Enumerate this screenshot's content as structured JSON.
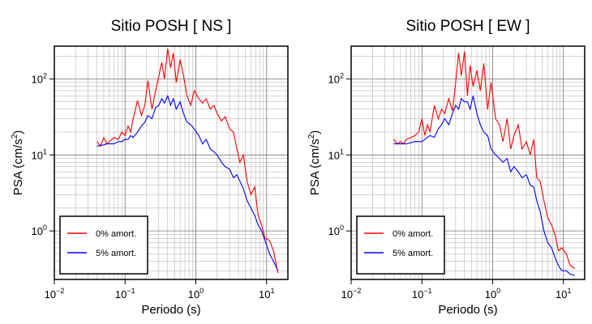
{
  "chart_data": [
    {
      "type": "line",
      "title": "Sitio POSH [ NS ]",
      "xlabel": "Periodo (s)",
      "ylabel": {
        "text": "PSA (cm/s",
        "sup": "2",
        "close": ")"
      },
      "xscale": "log",
      "yscale": "log",
      "grid": true,
      "legend": "lower left",
      "xlim": [
        0.01,
        20
      ],
      "ylim": [
        0.23,
        270
      ],
      "xticks": [
        {
          "value": 0.01,
          "label": "10",
          "exponent": "−2"
        },
        {
          "value": 0.1,
          "label": "10",
          "exponent": "−1"
        },
        {
          "value": 1,
          "label": "10",
          "exponent": "0"
        },
        {
          "value": 10,
          "label": "10",
          "exponent": "1"
        }
      ],
      "yticks": [
        {
          "value": 1,
          "label": "10",
          "exponent": "0"
        },
        {
          "value": 10,
          "label": "10",
          "exponent": "1"
        },
        {
          "value": 100,
          "label": "10",
          "exponent": "2"
        }
      ],
      "x": [
        0.04,
        0.045,
        0.05,
        0.055,
        0.06,
        0.07,
        0.08,
        0.09,
        0.1,
        0.11,
        0.12,
        0.13,
        0.15,
        0.17,
        0.19,
        0.21,
        0.24,
        0.27,
        0.3,
        0.33,
        0.36,
        0.4,
        0.44,
        0.48,
        0.53,
        0.6,
        0.67,
        0.75,
        0.85,
        0.95,
        1.1,
        1.25,
        1.4,
        1.6,
        1.8,
        2,
        2.3,
        2.6,
        3,
        3.4,
        3.8,
        4.2,
        4.7,
        5.3,
        6,
        6.8,
        7.6,
        8.5,
        9.5,
        11,
        12.5,
        14.5
      ],
      "series": [
        {
          "name": "0% amort.",
          "color": "#ff0000",
          "values": [
            15,
            13,
            17,
            14,
            15,
            17,
            16,
            20,
            18,
            24,
            20,
            30,
            52,
            33,
            45,
            95,
            40,
            70,
            110,
            165,
            100,
            250,
            140,
            220,
            90,
            180,
            110,
            60,
            45,
            70,
            55,
            48,
            55,
            40,
            45,
            35,
            28,
            32,
            22,
            20,
            12,
            8,
            10,
            4.5,
            3,
            3.8,
            1.6,
            1.2,
            0.8,
            0.75,
            0.55,
            0.28
          ]
        },
        {
          "name": "5% amort.",
          "color": "#0000ff",
          "values": [
            13,
            13.5,
            13.5,
            14,
            14,
            14,
            15,
            15,
            16,
            16,
            18,
            17,
            20,
            24,
            27,
            33,
            30,
            42,
            45,
            55,
            48,
            60,
            45,
            55,
            40,
            50,
            35,
            27,
            25,
            22,
            18,
            14,
            16,
            12,
            11,
            10,
            8,
            7,
            6.5,
            5,
            5.5,
            4.5,
            3.6,
            2.5,
            2,
            1.6,
            1.2,
            1,
            0.75,
            0.5,
            0.4,
            0.3
          ]
        }
      ]
    },
    {
      "type": "line",
      "title": "Sitio POSH [ EW ]",
      "xlabel": "Periodo (s)",
      "ylabel": {
        "text": "PSA (cm/s",
        "sup": "2",
        "close": ")"
      },
      "xscale": "log",
      "yscale": "log",
      "grid": true,
      "legend": "lower left",
      "xlim": [
        0.01,
        20
      ],
      "ylim": [
        0.23,
        270
      ],
      "xticks": [
        {
          "value": 0.01,
          "label": "10",
          "exponent": "−2"
        },
        {
          "value": 0.1,
          "label": "10",
          "exponent": "−1"
        },
        {
          "value": 1,
          "label": "10",
          "exponent": "0"
        },
        {
          "value": 10,
          "label": "10",
          "exponent": "1"
        }
      ],
      "yticks": [
        {
          "value": 1,
          "label": "10",
          "exponent": "0"
        },
        {
          "value": 10,
          "label": "10",
          "exponent": "1"
        },
        {
          "value": 100,
          "label": "10",
          "exponent": "2"
        }
      ],
      "x": [
        0.04,
        0.045,
        0.05,
        0.055,
        0.06,
        0.07,
        0.08,
        0.09,
        0.1,
        0.11,
        0.12,
        0.13,
        0.15,
        0.17,
        0.19,
        0.21,
        0.24,
        0.27,
        0.3,
        0.33,
        0.36,
        0.4,
        0.44,
        0.48,
        0.53,
        0.6,
        0.67,
        0.75,
        0.85,
        0.95,
        1.1,
        1.25,
        1.4,
        1.6,
        1.8,
        2,
        2.3,
        2.6,
        3,
        3.4,
        3.8,
        4.2,
        4.7,
        5.3,
        6,
        6.8,
        7.6,
        8.5,
        9.5,
        11,
        12.5,
        14.5
      ],
      "series": [
        {
          "name": "0% amort.",
          "color": "#ff0000",
          "values": [
            16,
            14,
            15,
            14,
            16,
            17,
            18,
            20,
            30,
            18,
            25,
            20,
            45,
            30,
            40,
            35,
            55,
            38,
            90,
            220,
            110,
            230,
            60,
            150,
            80,
            130,
            70,
            160,
            40,
            90,
            30,
            25,
            15,
            30,
            12,
            18,
            25,
            12,
            15,
            10,
            16,
            5,
            4.5,
            2.5,
            1.5,
            1.2,
            0.9,
            0.55,
            0.6,
            0.5,
            0.35,
            0.32
          ]
        },
        {
          "name": "5% amort.",
          "color": "#0000ff",
          "values": [
            14,
            14,
            14,
            14,
            14,
            14.5,
            15,
            15,
            15,
            16,
            17,
            18,
            17,
            22,
            25,
            30,
            25,
            35,
            45,
            40,
            55,
            50,
            50,
            40,
            60,
            35,
            25,
            20,
            18,
            12,
            10,
            9,
            8,
            9,
            6,
            7,
            6,
            5,
            5.5,
            4,
            3.8,
            2.5,
            1.8,
            1,
            0.7,
            0.6,
            0.45,
            0.35,
            0.3,
            0.3,
            0.27,
            0.26
          ]
        }
      ]
    }
  ]
}
